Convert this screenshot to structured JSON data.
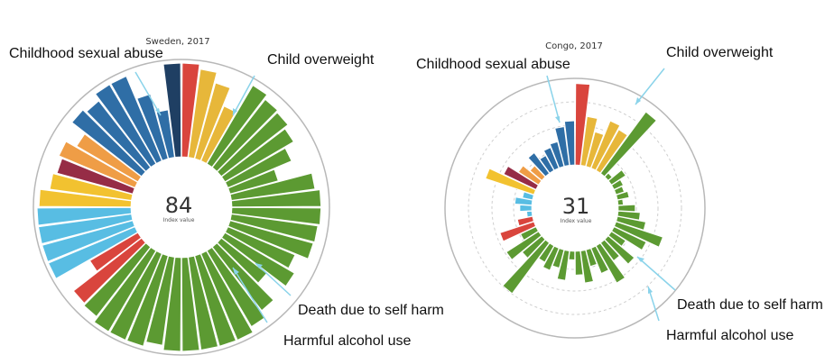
{
  "categories": {
    "csa": "#2f6ea6",
    "csa_dark": "#1f3f63",
    "red": "#d9453d",
    "yellow": "#e7b73a",
    "green": "#5c9a32",
    "orange": "#ef9d46",
    "crimson": "#962c46",
    "gold": "#f2c230",
    "sky": "#58bde3"
  },
  "chart_data": [
    {
      "type": "radial-bar",
      "title": "Sweden, 2017",
      "index_value": "84",
      "index_label": "Index value",
      "callouts": [
        "Childhood sexual abuse",
        "Child overweight",
        "Death due to self harm",
        "Harmful alcohol use"
      ],
      "scale": [
        0,
        1
      ],
      "bars": [
        {
          "c": "red",
          "v": 0.98
        },
        {
          "c": "yellow",
          "v": 0.93
        },
        {
          "c": "yellow",
          "v": 0.82
        },
        {
          "c": "yellow",
          "v": 0.62
        },
        {
          "c": "green",
          "v": 0.95
        },
        {
          "c": "green",
          "v": 0.9
        },
        {
          "c": "green",
          "v": 0.88
        },
        {
          "c": "green",
          "v": 0.83
        },
        {
          "c": "green",
          "v": 0.72
        },
        {
          "c": "green",
          "v": 0.52
        },
        {
          "c": "green",
          "v": 0.88
        },
        {
          "c": "green",
          "v": 0.93
        },
        {
          "c": "green",
          "v": 0.93
        },
        {
          "c": "green",
          "v": 0.91
        },
        {
          "c": "green",
          "v": 0.9
        },
        {
          "c": "green",
          "v": 0.76
        },
        {
          "c": "green",
          "v": 0.84
        },
        {
          "c": "green",
          "v": 0.6
        },
        {
          "c": "green",
          "v": 0.84
        },
        {
          "c": "green",
          "v": 0.92
        },
        {
          "c": "green",
          "v": 0.98
        },
        {
          "c": "green",
          "v": 0.98
        },
        {
          "c": "green",
          "v": 0.98
        },
        {
          "c": "green",
          "v": 0.98
        },
        {
          "c": "green",
          "v": 0.98
        },
        {
          "c": "green",
          "v": 0.93
        },
        {
          "c": "green",
          "v": 0.98
        },
        {
          "c": "green",
          "v": 0.98
        },
        {
          "c": "green",
          "v": 0.98
        },
        {
          "c": "green",
          "v": 0.92
        },
        {
          "c": "red",
          "v": 0.9
        },
        {
          "c": "red",
          "v": 0.58
        },
        {
          "c": "sky",
          "v": 0.98
        },
        {
          "c": "sky",
          "v": 0.98
        },
        {
          "c": "sky",
          "v": 0.98
        },
        {
          "c": "sky",
          "v": 0.98
        },
        {
          "c": "gold",
          "v": 0.96
        },
        {
          "c": "gold",
          "v": 0.86
        },
        {
          "c": "crimson",
          "v": 0.82
        },
        {
          "c": "orange",
          "v": 0.86
        },
        {
          "c": "orange",
          "v": 0.74
        },
        {
          "c": "csa",
          "v": 0.92
        },
        {
          "c": "csa",
          "v": 0.88
        },
        {
          "c": "csa",
          "v": 0.96
        },
        {
          "c": "csa",
          "v": 0.96
        },
        {
          "c": "csa",
          "v": 0.7
        },
        {
          "c": "csa",
          "v": 0.5
        },
        {
          "c": "csa_dark",
          "v": 0.98
        }
      ]
    },
    {
      "type": "radial-bar",
      "title": "Congo, 2017",
      "index_value": "31",
      "index_label": "Index value",
      "callouts": [
        "Childhood sexual abuse",
        "Child overweight",
        "Death due to self harm",
        "Harmful alcohol use"
      ],
      "scale": [
        0,
        1
      ],
      "bars": [
        {
          "c": "red",
          "v": 0.96
        },
        {
          "c": "yellow",
          "v": 0.58
        },
        {
          "c": "yellow",
          "v": 0.42
        },
        {
          "c": "yellow",
          "v": 0.6
        },
        {
          "c": "yellow",
          "v": 0.55
        },
        {
          "c": "green",
          "v": 0.9
        },
        {
          "c": "green",
          "v": 0.06
        },
        {
          "c": "green",
          "v": 0.2
        },
        {
          "c": "green",
          "v": 0.12
        },
        {
          "c": "green",
          "v": 0.1
        },
        {
          "c": "green",
          "v": 0.14
        },
        {
          "c": "green",
          "v": 0.06
        },
        {
          "c": "green",
          "v": 0.2
        },
        {
          "c": "green",
          "v": 0.26
        },
        {
          "c": "green",
          "v": 0.34
        },
        {
          "c": "green",
          "v": 0.58
        },
        {
          "c": "green",
          "v": 0.42
        },
        {
          "c": "green",
          "v": 0.2
        },
        {
          "c": "green",
          "v": 0.4
        },
        {
          "c": "green",
          "v": 0.26
        },
        {
          "c": "green",
          "v": 0.5
        },
        {
          "c": "green",
          "v": 0.32
        },
        {
          "c": "green",
          "v": 0.2
        },
        {
          "c": "green",
          "v": 0.38
        },
        {
          "c": "green",
          "v": 0.28
        },
        {
          "c": "green",
          "v": 0.1
        },
        {
          "c": "green",
          "v": 0.35
        },
        {
          "c": "green",
          "v": 0.22
        },
        {
          "c": "green",
          "v": 0.28
        },
        {
          "c": "green",
          "v": 0.22
        },
        {
          "c": "green",
          "v": 0.74
        },
        {
          "c": "green",
          "v": 0.3
        },
        {
          "c": "green",
          "v": 0.45
        },
        {
          "c": "green",
          "v": 0.2
        },
        {
          "c": "red",
          "v": 0.42
        },
        {
          "c": "red",
          "v": 0.18
        },
        {
          "c": "sky",
          "v": 0.06
        },
        {
          "c": "sky",
          "v": 0.14
        },
        {
          "c": "sky",
          "v": 0.2
        },
        {
          "c": "sky",
          "v": 0.12
        },
        {
          "c": "gold",
          "v": 0.6
        },
        {
          "c": "crimson",
          "v": 0.42
        },
        {
          "c": "orange",
          "v": 0.28
        },
        {
          "c": "orange",
          "v": 0.18
        },
        {
          "c": "csa",
          "v": 0.3
        },
        {
          "c": "csa",
          "v": 0.2
        },
        {
          "c": "csa",
          "v": 0.26
        },
        {
          "c": "csa",
          "v": 0.3
        },
        {
          "c": "csa",
          "v": 0.46
        },
        {
          "c": "csa",
          "v": 0.52
        }
      ]
    }
  ]
}
